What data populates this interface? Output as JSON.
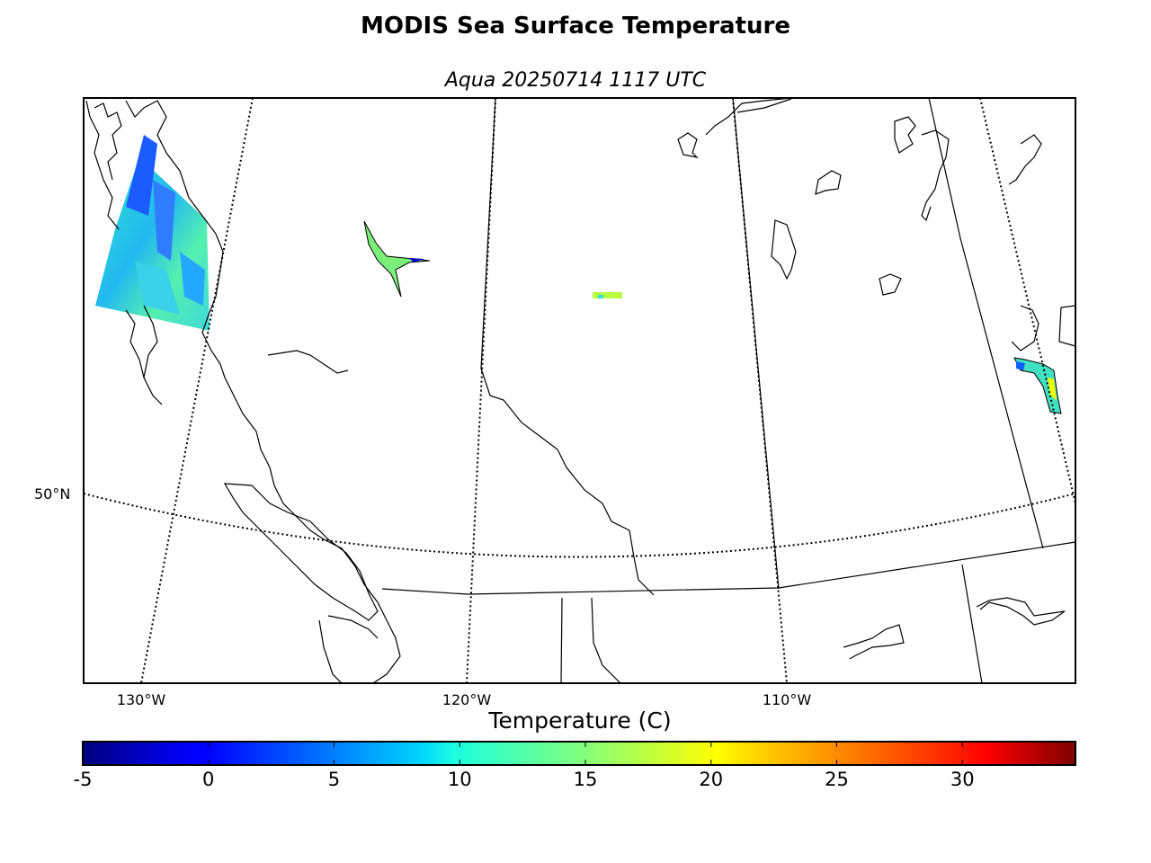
{
  "title": "MODIS Sea Surface Temperature",
  "subtitle": "Aqua 20250714 1117 UTC",
  "map": {
    "lat_labels": [
      {
        "text": "50°N",
        "lat": 50
      }
    ],
    "lon_labels": [
      {
        "text": "130°W",
        "lon": -130
      },
      {
        "text": "120°W",
        "lon": -120
      },
      {
        "text": "110°W",
        "lon": -110
      }
    ],
    "graticule": "dotted"
  },
  "colorbar": {
    "title": "Temperature (C)",
    "min": -5,
    "max": 34.5,
    "colormap": "jet",
    "ticks": [
      "-5",
      "0",
      "5",
      "10",
      "15",
      "20",
      "25",
      "30"
    ]
  },
  "colors": {
    "frame": "#000000",
    "coast": "#000000"
  }
}
